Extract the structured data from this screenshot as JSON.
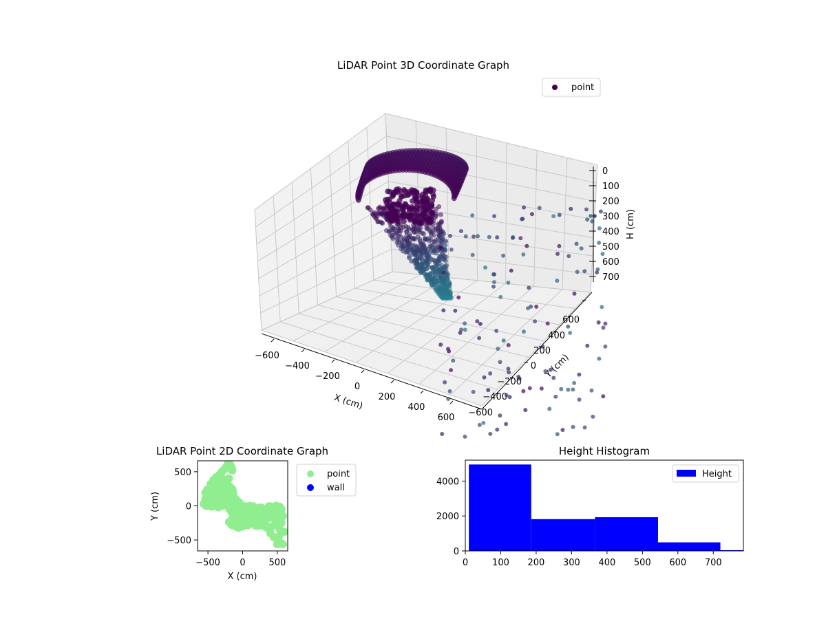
{
  "figure": {
    "background": "#ffffff"
  },
  "chart_data": [
    {
      "type": "scatter",
      "projection": "3d",
      "title": "LiDAR Point 3D Coordinate Graph",
      "xlabel": "X (cm)",
      "ylabel": "Y (cm)",
      "zlabel": "H (cm)",
      "xticks": [
        "−600",
        "−400",
        "−200",
        "0",
        "200",
        "400",
        "600"
      ],
      "yticks": [
        "−600",
        "−400",
        "−200",
        "0",
        "200",
        "400",
        "600"
      ],
      "zticks": [
        "0",
        "100",
        "200",
        "300",
        "400",
        "500",
        "600",
        "700"
      ],
      "zaxis_inverted": true,
      "colormap": "viridis",
      "legend": {
        "label": "point",
        "color": "#440154",
        "placement": "top-right"
      },
      "grid": true,
      "series": [
        {
          "marker_color_range": [
            "#440154",
            "#26828e"
          ],
          "points_approx": [
            {
              "x": -500,
              "y": 300,
              "h": 60
            },
            {
              "x": -450,
              "y": 200,
              "h": 80
            },
            {
              "x": -400,
              "y": 100,
              "h": 120
            },
            {
              "x": -350,
              "y": 0,
              "h": 200
            },
            {
              "x": -300,
              "y": -100,
              "h": 300
            },
            {
              "x": -250,
              "y": -150,
              "h": 400
            },
            {
              "x": -200,
              "y": -200,
              "h": 500
            },
            {
              "x": -150,
              "y": -250,
              "h": 600
            },
            {
              "x": -100,
              "y": -300,
              "h": 700
            },
            {
              "x": 300,
              "y": 500,
              "h": 200
            },
            {
              "x": 400,
              "y": 300,
              "h": 350
            },
            {
              "x": 500,
              "y": 100,
              "h": 500
            },
            {
              "x": 550,
              "y": -200,
              "h": 650
            },
            {
              "x": 600,
              "y": -500,
              "h": 780
            }
          ]
        }
      ]
    },
    {
      "type": "scatter",
      "title": "LiDAR Point 2D Coordinate Graph",
      "xlabel": "X (cm)",
      "ylabel": "Y (cm)",
      "xlim": [
        -650,
        650
      ],
      "ylim": [
        -660,
        660
      ],
      "xticks": [
        "−500",
        "0",
        "500"
      ],
      "yticks": [
        "500",
        "0",
        "−500"
      ],
      "legend": [
        {
          "label": "point",
          "color": "#90ee90"
        },
        {
          "label": "wall",
          "color": "#0000ff"
        }
      ],
      "legend_placement": "outside-right",
      "series": [
        {
          "name": "point",
          "color": "#90ee90",
          "points": [
            [
              -560,
              30
            ],
            [
              -540,
              20
            ],
            [
              -530,
              60
            ],
            [
              -510,
              150
            ],
            [
              -490,
              250
            ],
            [
              -460,
              320
            ],
            [
              -420,
              380
            ],
            [
              -380,
              420
            ],
            [
              -330,
              460
            ],
            [
              -300,
              500
            ],
            [
              -260,
              540
            ],
            [
              -230,
              580
            ],
            [
              -210,
              620
            ],
            [
              -180,
              600
            ],
            [
              -160,
              560
            ],
            [
              -150,
              520
            ],
            [
              -200,
              400
            ],
            [
              -260,
              300
            ],
            [
              -320,
              200
            ],
            [
              -380,
              100
            ],
            [
              -440,
              40
            ],
            [
              -500,
              10
            ],
            [
              -480,
              100
            ],
            [
              -400,
              200
            ],
            [
              -350,
              300
            ],
            [
              -300,
              100
            ],
            [
              -250,
              50
            ],
            [
              -200,
              0
            ],
            [
              -150,
              -100
            ],
            [
              -120,
              -200
            ],
            [
              -100,
              -300
            ],
            [
              -60,
              -320
            ],
            [
              0,
              -300
            ],
            [
              60,
              -280
            ],
            [
              120,
              -250
            ],
            [
              200,
              -230
            ],
            [
              280,
              -200
            ],
            [
              330,
              -150
            ],
            [
              380,
              -100
            ],
            [
              420,
              -40
            ],
            [
              480,
              0
            ],
            [
              530,
              -10
            ],
            [
              560,
              -50
            ],
            [
              580,
              -150
            ],
            [
              560,
              -250
            ],
            [
              540,
              -350
            ],
            [
              520,
              -450
            ],
            [
              540,
              -540
            ],
            [
              580,
              -560
            ],
            [
              500,
              -560
            ],
            [
              450,
              -460
            ],
            [
              400,
              -400
            ],
            [
              350,
              -320
            ],
            [
              300,
              -280
            ],
            [
              250,
              -200
            ],
            [
              200,
              -100
            ],
            [
              150,
              -50
            ],
            [
              100,
              0
            ],
            [
              50,
              -20
            ],
            [
              0,
              -80
            ],
            [
              -50,
              -150
            ],
            [
              -100,
              -100
            ],
            [
              -150,
              0
            ],
            [
              -200,
              100
            ],
            [
              -250,
              150
            ],
            [
              -300,
              0
            ],
            [
              -350,
              -20
            ],
            [
              -400,
              0
            ],
            [
              -450,
              -10
            ],
            [
              -520,
              0
            ],
            [
              -100,
              100
            ],
            [
              -50,
              50
            ],
            [
              0,
              0
            ],
            [
              -50,
              -250
            ],
            [
              10,
              -200
            ],
            [
              100,
              -150
            ],
            [
              150,
              -200
            ],
            [
              230,
              -120
            ],
            [
              300,
              -60
            ],
            [
              360,
              -40
            ],
            [
              410,
              -160
            ],
            [
              470,
              -200
            ],
            [
              520,
              -300
            ],
            [
              600,
              -380
            ],
            [
              430,
              -300
            ],
            [
              -220,
              250
            ],
            [
              -280,
              350
            ],
            [
              -350,
              400
            ],
            [
              -420,
              300
            ],
            [
              -480,
              200
            ]
          ]
        },
        {
          "name": "wall",
          "color": "#0000ff",
          "points": []
        }
      ]
    },
    {
      "type": "bar",
      "subtype": "histogram",
      "title": "Height Histogram",
      "xticks": [
        "0",
        "100",
        "200",
        "300",
        "400",
        "500",
        "600",
        "700"
      ],
      "yticks": [
        "0",
        "2000",
        "4000"
      ],
      "xlim": [
        0,
        785
      ],
      "ylim": [
        0,
        5200
      ],
      "legend": {
        "label": "Height",
        "color": "#0000ff",
        "placement": "top-right"
      },
      "bar_color": "#0000ff",
      "bins": [
        {
          "start": 10,
          "end": 186,
          "count": 4950
        },
        {
          "start": 186,
          "end": 366,
          "count": 1820
        },
        {
          "start": 366,
          "end": 544,
          "count": 1930
        },
        {
          "start": 544,
          "end": 720,
          "count": 490
        },
        {
          "start": 720,
          "end": 790,
          "count": 40
        }
      ]
    }
  ]
}
